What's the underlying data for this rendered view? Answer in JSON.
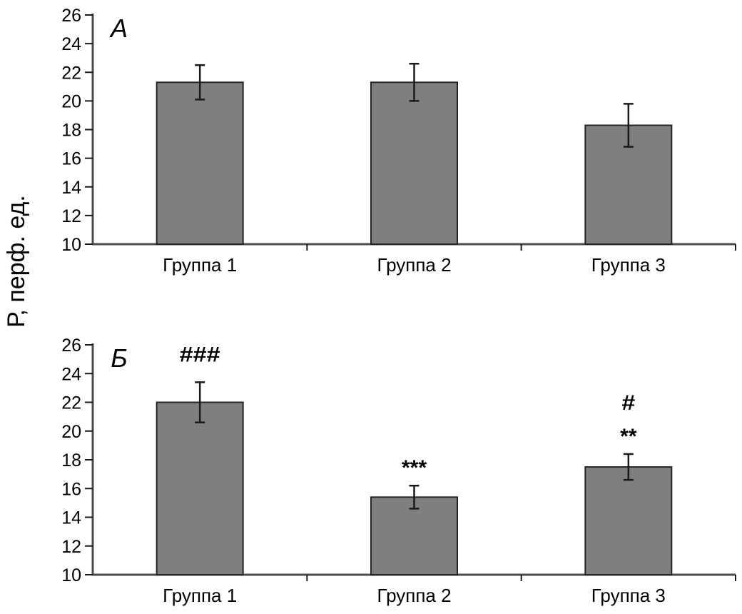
{
  "figure": {
    "ylabel": "Р, перф. ед.",
    "colors": {
      "background": "#ffffff",
      "bar_fill": "#7f7f7f",
      "bar_stroke": "#262626",
      "axis": "#4d4d4d",
      "tick": "#1a1a1a",
      "error_bar": "#1a1a1a",
      "text": "#000000"
    }
  },
  "chart_data": [
    {
      "type": "bar",
      "panel_label": "А",
      "categories": [
        "Группа 1",
        "Группа 2",
        "Группа 3"
      ],
      "values": [
        21.3,
        21.3,
        18.3
      ],
      "errors": [
        1.2,
        1.3,
        1.5
      ],
      "annotations": [
        [],
        [],
        []
      ],
      "title": "",
      "xlabel": "",
      "ylabel": "Р, перф. ед.",
      "ylim": [
        10,
        26
      ],
      "ytick_step": 2,
      "grid": false,
      "legend": null
    },
    {
      "type": "bar",
      "panel_label": "Б",
      "categories": [
        "Группа 1",
        "Группа 2",
        "Группа 3"
      ],
      "values": [
        22.0,
        15.4,
        17.5
      ],
      "errors": [
        1.4,
        0.8,
        0.9
      ],
      "annotations": [
        [
          "###"
        ],
        [
          "***"
        ],
        [
          "#",
          "**"
        ]
      ],
      "title": "",
      "xlabel": "",
      "ylabel": "Р, перф. ед.",
      "ylim": [
        10,
        26
      ],
      "ytick_step": 2,
      "grid": false,
      "legend": null
    }
  ]
}
